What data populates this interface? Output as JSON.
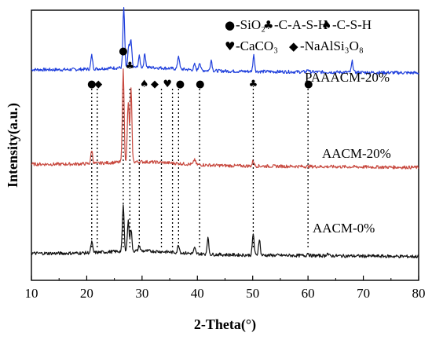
{
  "chart_data": {
    "type": "line",
    "xlabel": "2-Theta(°)",
    "ylabel": "Intensity(a.u.)",
    "xlim": [
      10,
      80
    ],
    "xticks": [
      10,
      20,
      30,
      40,
      50,
      60,
      70,
      80
    ],
    "grid": false,
    "legend": [
      {
        "marker": "●",
        "label": "-SiO₂"
      },
      {
        "marker": "♣",
        "label": "-C-A-S-H"
      },
      {
        "marker": "♠",
        "label": "-C-S-H"
      },
      {
        "marker": "♥",
        "label": "-CaCO₃"
      },
      {
        "marker": "◆",
        "label": "-NaAlSi₃O₈"
      }
    ],
    "series": [
      {
        "name": "PAAACM-20%",
        "color": "#1f3fdc",
        "baseline": 0.78,
        "peaks": [
          [
            20.9,
            0.05
          ],
          [
            26.7,
            0.22
          ],
          [
            27.6,
            0.08
          ],
          [
            28.0,
            0.1
          ],
          [
            29.5,
            0.04
          ],
          [
            30.5,
            0.05
          ],
          [
            36.6,
            0.05
          ],
          [
            39.5,
            0.02
          ],
          [
            40.4,
            0.03
          ],
          [
            42.5,
            0.04
          ],
          [
            50.2,
            0.06
          ],
          [
            60.0,
            0.01
          ],
          [
            68.0,
            0.04
          ]
        ]
      },
      {
        "name": "AACM-20%",
        "color": "#c8493f",
        "baseline": 0.43,
        "peaks": [
          [
            20.9,
            0.05
          ],
          [
            26.6,
            0.34
          ],
          [
            27.5,
            0.22
          ],
          [
            28.0,
            0.27
          ],
          [
            39.5,
            0.02
          ],
          [
            50.1,
            0.02
          ]
        ]
      },
      {
        "name": "AACM-0%",
        "color": "#111111",
        "baseline": 0.1,
        "peaks": [
          [
            20.9,
            0.04
          ],
          [
            26.6,
            0.17
          ],
          [
            27.5,
            0.11
          ],
          [
            28.0,
            0.08
          ],
          [
            29.5,
            0.02
          ],
          [
            36.6,
            0.03
          ],
          [
            39.5,
            0.02
          ],
          [
            41.9,
            0.06
          ],
          [
            50.1,
            0.08
          ],
          [
            51.2,
            0.06
          ],
          [
            60.0,
            0.01
          ],
          [
            63.5,
            0.01
          ]
        ]
      }
    ],
    "reference_lines_x": [
      20.9,
      21.9,
      26.6,
      27.8,
      29.5,
      33.5,
      35.5,
      36.6,
      40.4,
      50.1,
      60.0
    ],
    "phase_markers": [
      {
        "x": 20.9,
        "symbol": "●"
      },
      {
        "x": 22.1,
        "symbol": "◆"
      },
      {
        "x": 26.6,
        "symbol": "●"
      },
      {
        "x": 27.8,
        "symbol": "♣"
      },
      {
        "x": 30.4,
        "symbol": "♠"
      },
      {
        "x": 32.3,
        "symbol": "◆"
      },
      {
        "x": 34.6,
        "symbol": "♥"
      },
      {
        "x": 36.9,
        "symbol": "●"
      },
      {
        "x": 40.5,
        "symbol": "●"
      },
      {
        "x": 50.1,
        "symbol": "♣"
      },
      {
        "x": 60.1,
        "symbol": "●"
      }
    ]
  }
}
